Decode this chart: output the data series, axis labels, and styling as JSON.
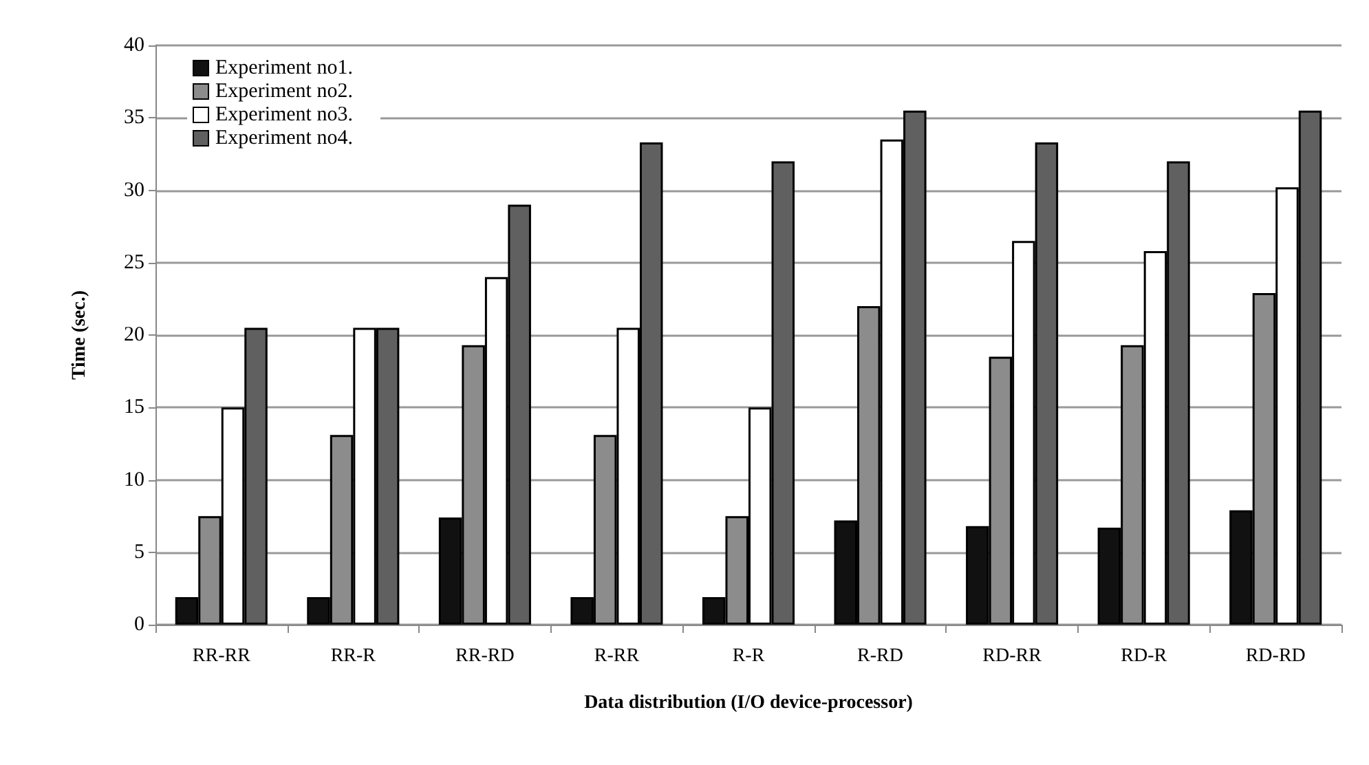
{
  "chart_data": {
    "type": "bar",
    "xlabel": "Data distribution (I/O device-processor)",
    "ylabel": "Time (sec.)",
    "categories": [
      "RR-RR",
      "RR-R",
      "RR-RD",
      "R-RR",
      "R-R",
      "R-RD",
      "RD-RR",
      "RD-R",
      "RD-RD"
    ],
    "series": [
      {
        "name": "Experiment no1.",
        "color": "#111111",
        "values": [
          1.9,
          1.9,
          7.4,
          1.9,
          1.9,
          7.2,
          6.8,
          6.7,
          7.9
        ]
      },
      {
        "name": "Experiment no2.",
        "color": "#8c8c8c",
        "values": [
          7.5,
          13.1,
          19.3,
          13.1,
          7.5,
          22,
          18.5,
          19.3,
          22.9
        ]
      },
      {
        "name": "Experiment no3.",
        "color": "#ffffff",
        "values": [
          15,
          20.5,
          24,
          20.5,
          15,
          33.5,
          26.5,
          25.8,
          30.2
        ]
      },
      {
        "name": "Experiment no4.",
        "color": "#606060",
        "values": [
          20.5,
          20.5,
          29,
          33.3,
          32,
          35.5,
          33.3,
          32,
          35.5
        ]
      }
    ],
    "ylim": [
      0,
      40
    ],
    "yticks": [
      0,
      5,
      10,
      15,
      20,
      25,
      30,
      35,
      40
    ],
    "grid": "y",
    "legend": "top left"
  }
}
